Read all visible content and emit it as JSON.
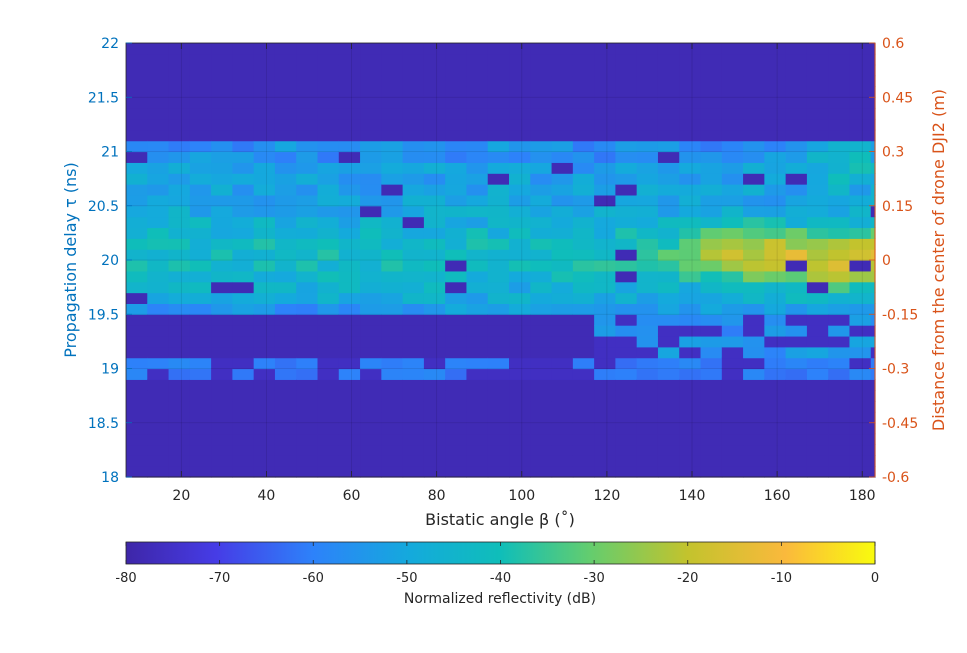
{
  "chart_data": {
    "type": "heatmap",
    "xlabel": "Bistatic angle β (˚)",
    "ylabel": "Propagation delay τ (ns)",
    "y2label": "Distance from the center of drone DJI2 (m)",
    "colorbar_label": "Normalized reflectivity (dB)",
    "xlim": [
      7,
      183
    ],
    "ylim": [
      18,
      22
    ],
    "y2lim": [
      -0.6,
      0.6
    ],
    "clim": [
      -80,
      0
    ],
    "x_ticks": [
      20,
      40,
      60,
      80,
      100,
      120,
      140,
      160,
      180
    ],
    "y_ticks": [
      18,
      18.5,
      19,
      19.5,
      20,
      20.5,
      21,
      21.5,
      22
    ],
    "y2_ticks": [
      -0.6,
      -0.45,
      -0.3,
      -0.15,
      0,
      0.15,
      0.3,
      0.45,
      0.6
    ],
    "colorbar_ticks": [
      -80,
      -70,
      -60,
      -50,
      -40,
      -30,
      -20,
      -10,
      0
    ],
    "x_cell_step_deg": 5,
    "y_cell_step_ns": 0.1,
    "grid": true,
    "colormap": "parula",
    "colors": {
      "left_axis": "#0072BD",
      "right_axis": "#D95319",
      "text": "#262626"
    },
    "profile_note_db": {
      "background": -78,
      "main_band_range_ns": [
        19.5,
        21.1
      ],
      "main_band_level_db": -55,
      "specular_peak": {
        "beta_deg": 180,
        "tau_ns": 20.0,
        "value_db": -15
      },
      "lower_band": {
        "tau_ns": 19.0,
        "level_db": -62
      }
    }
  }
}
